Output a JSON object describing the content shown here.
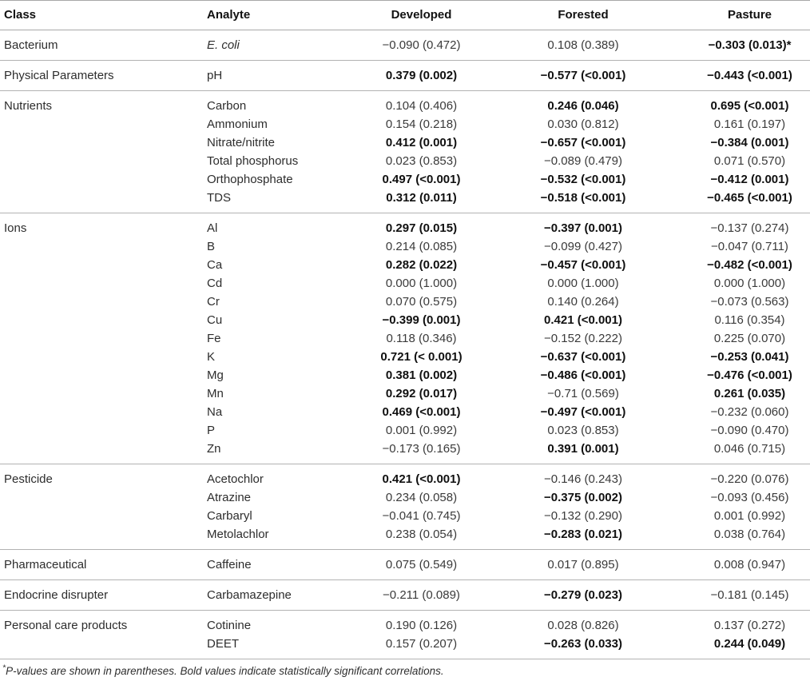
{
  "table": {
    "columns": [
      "Class",
      "Analyte",
      "Developed",
      "Forested",
      "Pasture"
    ],
    "groups": [
      {
        "class_label": "Bacterium",
        "rows": [
          {
            "analyte": "E. coli",
            "italic": true,
            "values": [
              {
                "text": "−0.090 (0.472)",
                "bold": false
              },
              {
                "text": "0.108 (0.389)",
                "bold": false
              },
              {
                "text": "−0.303 (0.013)*",
                "bold": true
              }
            ]
          }
        ]
      },
      {
        "class_label": "Physical Parameters",
        "rows": [
          {
            "analyte": "pH",
            "values": [
              {
                "text": "0.379 (0.002)",
                "bold": true
              },
              {
                "text": "−0.577 (<0.001)",
                "bold": true
              },
              {
                "text": "−0.443 (<0.001)",
                "bold": true
              }
            ]
          }
        ]
      },
      {
        "class_label": "Nutrients",
        "rows": [
          {
            "analyte": "Carbon",
            "values": [
              {
                "text": "0.104 (0.406)",
                "bold": false
              },
              {
                "text": "0.246 (0.046)",
                "bold": true
              },
              {
                "text": "0.695 (<0.001)",
                "bold": true
              }
            ]
          },
          {
            "analyte": "Ammonium",
            "values": [
              {
                "text": "0.154 (0.218)",
                "bold": false
              },
              {
                "text": "0.030 (0.812)",
                "bold": false
              },
              {
                "text": "0.161 (0.197)",
                "bold": false
              }
            ]
          },
          {
            "analyte": "Nitrate/nitrite",
            "values": [
              {
                "text": "0.412 (0.001)",
                "bold": true
              },
              {
                "text": "−0.657 (<0.001)",
                "bold": true
              },
              {
                "text": "−0.384 (0.001)",
                "bold": true
              }
            ]
          },
          {
            "analyte": "Total phosphorus",
            "values": [
              {
                "text": "0.023 (0.853)",
                "bold": false
              },
              {
                "text": "−0.089 (0.479)",
                "bold": false
              },
              {
                "text": "0.071 (0.570)",
                "bold": false
              }
            ]
          },
          {
            "analyte": "Orthophosphate",
            "values": [
              {
                "text": "0.497 (<0.001)",
                "bold": true
              },
              {
                "text": "−0.532 (<0.001)",
                "bold": true
              },
              {
                "text": "−0.412 (0.001)",
                "bold": true
              }
            ]
          },
          {
            "analyte": "TDS",
            "values": [
              {
                "text": "0.312 (0.011)",
                "bold": true
              },
              {
                "text": "−0.518 (<0.001)",
                "bold": true
              },
              {
                "text": "−0.465 (<0.001)",
                "bold": true
              }
            ]
          }
        ]
      },
      {
        "class_label": "Ions",
        "rows": [
          {
            "analyte": "Al",
            "values": [
              {
                "text": "0.297 (0.015)",
                "bold": true
              },
              {
                "text": "−0.397 (0.001)",
                "bold": true
              },
              {
                "text": "−0.137 (0.274)",
                "bold": false
              }
            ]
          },
          {
            "analyte": "B",
            "values": [
              {
                "text": "0.214 (0.085)",
                "bold": false
              },
              {
                "text": "−0.099 (0.427)",
                "bold": false
              },
              {
                "text": "−0.047 (0.711)",
                "bold": false
              }
            ]
          },
          {
            "analyte": "Ca",
            "values": [
              {
                "text": "0.282 (0.022)",
                "bold": true
              },
              {
                "text": "−0.457 (<0.001)",
                "bold": true
              },
              {
                "text": "−0.482 (<0.001)",
                "bold": true
              }
            ]
          },
          {
            "analyte": "Cd",
            "values": [
              {
                "text": "0.000 (1.000)",
                "bold": false
              },
              {
                "text": "0.000 (1.000)",
                "bold": false
              },
              {
                "text": "0.000 (1.000)",
                "bold": false
              }
            ]
          },
          {
            "analyte": "Cr",
            "values": [
              {
                "text": "0.070 (0.575)",
                "bold": false
              },
              {
                "text": "0.140 (0.264)",
                "bold": false
              },
              {
                "text": "−0.073 (0.563)",
                "bold": false
              }
            ]
          },
          {
            "analyte": "Cu",
            "values": [
              {
                "text": "−0.399 (0.001)",
                "bold": true
              },
              {
                "text": "0.421 (<0.001)",
                "bold": true
              },
              {
                "text": "0.116 (0.354)",
                "bold": false
              }
            ]
          },
          {
            "analyte": "Fe",
            "values": [
              {
                "text": "0.118 (0.346)",
                "bold": false
              },
              {
                "text": "−0.152 (0.222)",
                "bold": false
              },
              {
                "text": "0.225 (0.070)",
                "bold": false
              }
            ]
          },
          {
            "analyte": "K",
            "values": [
              {
                "text": "0.721 (< 0.001)",
                "bold": true
              },
              {
                "text": "−0.637 (<0.001)",
                "bold": true
              },
              {
                "text": "−0.253 (0.041)",
                "bold": true
              }
            ]
          },
          {
            "analyte": "Mg",
            "values": [
              {
                "text": "0.381 (0.002)",
                "bold": true
              },
              {
                "text": "−0.486 (<0.001)",
                "bold": true
              },
              {
                "text": "−0.476 (<0.001)",
                "bold": true
              }
            ]
          },
          {
            "analyte": "Mn",
            "values": [
              {
                "text": "0.292 (0.017)",
                "bold": true
              },
              {
                "text": "−0.71 (0.569)",
                "bold": false
              },
              {
                "text": "0.261 (0.035)",
                "bold": true
              }
            ]
          },
          {
            "analyte": "Na",
            "values": [
              {
                "text": "0.469 (<0.001)",
                "bold": true
              },
              {
                "text": "−0.497 (<0.001)",
                "bold": true
              },
              {
                "text": "−0.232 (0.060)",
                "bold": false
              }
            ]
          },
          {
            "analyte": "P",
            "values": [
              {
                "text": "0.001 (0.992)",
                "bold": false
              },
              {
                "text": "0.023 (0.853)",
                "bold": false
              },
              {
                "text": "−0.090 (0.470)",
                "bold": false
              }
            ]
          },
          {
            "analyte": "Zn",
            "values": [
              {
                "text": "−0.173 (0.165)",
                "bold": false
              },
              {
                "text": "0.391 (0.001)",
                "bold": true
              },
              {
                "text": "0.046 (0.715)",
                "bold": false
              }
            ]
          }
        ]
      },
      {
        "class_label": "Pesticide",
        "rows": [
          {
            "analyte": "Acetochlor",
            "values": [
              {
                "text": "0.421 (<0.001)",
                "bold": true
              },
              {
                "text": "−0.146 (0.243)",
                "bold": false
              },
              {
                "text": "−0.220 (0.076)",
                "bold": false
              }
            ]
          },
          {
            "analyte": "Atrazine",
            "values": [
              {
                "text": "0.234 (0.058)",
                "bold": false
              },
              {
                "text": "−0.375 (0.002)",
                "bold": true
              },
              {
                "text": "−0.093 (0.456)",
                "bold": false
              }
            ]
          },
          {
            "analyte": "Carbaryl",
            "values": [
              {
                "text": "−0.041 (0.745)",
                "bold": false
              },
              {
                "text": "−0.132 (0.290)",
                "bold": false
              },
              {
                "text": "0.001 (0.992)",
                "bold": false
              }
            ]
          },
          {
            "analyte": "Metolachlor",
            "values": [
              {
                "text": "0.238 (0.054)",
                "bold": false
              },
              {
                "text": "−0.283 (0.021)",
                "bold": true
              },
              {
                "text": "0.038 (0.764)",
                "bold": false
              }
            ]
          }
        ]
      },
      {
        "class_label": "Pharmaceutical",
        "rows": [
          {
            "analyte": "Caffeine",
            "values": [
              {
                "text": "0.075 (0.549)",
                "bold": false
              },
              {
                "text": "0.017 (0.895)",
                "bold": false
              },
              {
                "text": "0.008 (0.947)",
                "bold": false
              }
            ]
          }
        ]
      },
      {
        "class_label": "Endocrine disrupter",
        "rows": [
          {
            "analyte": "Carbamazepine",
            "values": [
              {
                "text": "−0.211 (0.089)",
                "bold": false
              },
              {
                "text": "−0.279 (0.023)",
                "bold": true
              },
              {
                "text": "−0.181 (0.145)",
                "bold": false
              }
            ]
          }
        ]
      },
      {
        "class_label": "Personal care products",
        "rows": [
          {
            "analyte": "Cotinine",
            "values": [
              {
                "text": "0.190 (0.126)",
                "bold": false
              },
              {
                "text": "0.028 (0.826)",
                "bold": false
              },
              {
                "text": "0.137 (0.272)",
                "bold": false
              }
            ]
          },
          {
            "analyte": "DEET",
            "values": [
              {
                "text": "0.157 (0.207)",
                "bold": false
              },
              {
                "text": "−0.263 (0.033)",
                "bold": true
              },
              {
                "text": "0.244 (0.049)",
                "bold": true
              }
            ]
          }
        ]
      }
    ],
    "footnote_marker": "*",
    "footnote_text": "P-values are shown in parentheses. Bold values indicate statistically significant correlations."
  }
}
